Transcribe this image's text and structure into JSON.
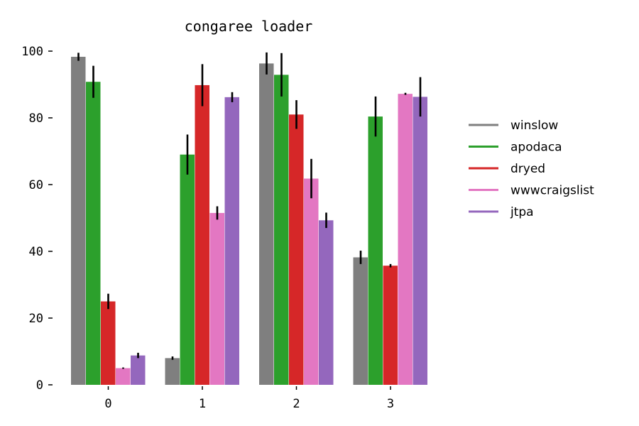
{
  "chart_data": {
    "type": "bar",
    "title": "congaree loader",
    "xlabel": "",
    "ylabel": "",
    "categories": [
      "0",
      "1",
      "2",
      "3"
    ],
    "ylim": [
      0,
      100
    ],
    "yticks": [
      0,
      20,
      40,
      60,
      80,
      100
    ],
    "grid": false,
    "legend_position": "right",
    "series": [
      {
        "name": "winslow",
        "color": "#7f7f7f",
        "values": [
          98.3,
          8.0,
          96.3,
          38.2
        ],
        "err": [
          1.2,
          0.5,
          3.3,
          2.0
        ]
      },
      {
        "name": "apodaca",
        "color": "#2ca02c",
        "values": [
          90.8,
          69.0,
          92.9,
          80.4
        ],
        "err": [
          4.8,
          6.0,
          6.5,
          6.0
        ]
      },
      {
        "name": "dryed",
        "color": "#d62728",
        "values": [
          25.0,
          89.8,
          81.0,
          35.7
        ],
        "err": [
          2.3,
          6.3,
          4.3,
          0.5
        ]
      },
      {
        "name": "wwwcraigslist",
        "color": "#e377c2",
        "values": [
          5.0,
          51.5,
          61.8,
          87.2
        ],
        "err": [
          0.2,
          2.0,
          5.9,
          0.3
        ]
      },
      {
        "name": "jtpa",
        "color": "#9467bd",
        "values": [
          8.8,
          86.2,
          49.3,
          86.3
        ],
        "err": [
          0.8,
          1.5,
          2.3,
          5.9
        ]
      }
    ]
  }
}
